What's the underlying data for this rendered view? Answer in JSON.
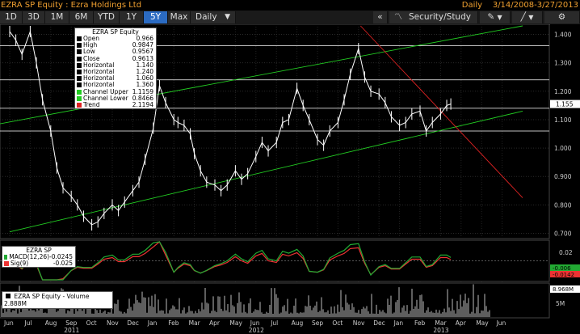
{
  "window": {
    "title": "EZRA SP Equity : Ezra Holdings Ltd",
    "period_label": "Daily",
    "date_range": "3/14/2008-3/27/2013"
  },
  "toolbar": {
    "buttons": [
      "1D",
      "3D",
      "1M",
      "6M",
      "YTD",
      "1Y",
      "5Y",
      "Max"
    ],
    "active": "5Y",
    "frequency": "Daily",
    "security_study": "Security/Study",
    "collapse_glyph": "«"
  },
  "colors": {
    "price": "#ffffff",
    "horizontal": "#ffffff",
    "channel": "#22cc22",
    "trend": "#dd2222",
    "macd": "#22aa33",
    "signal": "#ee3333",
    "accent": "#2b6bc2"
  },
  "legend_price": {
    "title": "EZRA SP Equity",
    "rows": [
      {
        "label": "Open",
        "value": "0.966",
        "swatch": "#000000"
      },
      {
        "label": "High",
        "value": "0.9847",
        "swatch": "#000000"
      },
      {
        "label": "Low",
        "value": "0.9567",
        "swatch": "#000000"
      },
      {
        "label": "Close",
        "value": "0.9613",
        "swatch": "#000000"
      },
      {
        "label": "Horizontal",
        "value": "1.140",
        "swatch": "#000000"
      },
      {
        "label": "Horizontal",
        "value": "1.240",
        "swatch": "#000000"
      },
      {
        "label": "Horizontal",
        "value": "1.060",
        "swatch": "#000000"
      },
      {
        "label": "Horizontal",
        "value": "1.360",
        "swatch": "#000000"
      },
      {
        "label": "Channel Upper",
        "value": "1.1159",
        "swatch": "#22cc22"
      },
      {
        "label": "Channel Lower",
        "value": "0.8466",
        "swatch": "#22cc22"
      },
      {
        "label": "Trend",
        "value": "2.1194",
        "swatch": "#dd2222"
      }
    ]
  },
  "legend_macd": {
    "title": "EZRA SP",
    "rows": [
      {
        "label": "MACD(12,26)",
        "value": "-0.0245",
        "swatch": "#22aa33"
      },
      {
        "label": "Sig(9)",
        "value": "-0.025",
        "swatch": "#ee3333"
      }
    ]
  },
  "legend_volume": {
    "label": "EZRA SP Equity - Volume",
    "value": "2.888M"
  },
  "chart_data": {
    "type": "line",
    "x_months": [
      "Jun",
      "Jul",
      "Aug",
      "Sep",
      "Oct",
      "Nov",
      "Dec",
      "Jan",
      "Feb",
      "Mar",
      "Apr",
      "May",
      "Jun",
      "Jul",
      "Aug",
      "Sep",
      "Oct",
      "Nov",
      "Dec",
      "Jan",
      "Feb",
      "Mar",
      "Apr",
      "May",
      "Jun"
    ],
    "x_years": [
      {
        "label": "2011",
        "month_index": 3
      },
      {
        "label": "2012",
        "month_index": 12
      },
      {
        "label": "2013",
        "month_index": 21
      }
    ],
    "price_axis": {
      "ticks": [
        "1.400",
        "1.300",
        "1.200",
        "1.100",
        "1.000",
        "0.900",
        "0.800",
        "0.700"
      ],
      "ylim": [
        0.69,
        1.43
      ],
      "last_price_label": "1.155"
    },
    "price_series": {
      "name": "EZRA SP Equity",
      "month_index": [
        0,
        0.3,
        0.6,
        1,
        1.3,
        1.6,
        2,
        2.3,
        2.6,
        3,
        3.3,
        3.6,
        4,
        4.3,
        4.6,
        5,
        5.3,
        5.6,
        6,
        6.3,
        6.6,
        7,
        7.3,
        7.6,
        8,
        8.2,
        8.5,
        8.8,
        9,
        9.3,
        9.6,
        10,
        10.3,
        10.6,
        11,
        11.3,
        11.6,
        12,
        12.3,
        12.6,
        13,
        13.3,
        13.6,
        14,
        14.3,
        14.6,
        15,
        15.3,
        15.6,
        16,
        16.3,
        16.6,
        17,
        17.3,
        17.6,
        18,
        18.3,
        18.6,
        19,
        19.3,
        19.6,
        20,
        20.3,
        20.6,
        21,
        21.3,
        21.5
      ],
      "values": [
        1.41,
        1.38,
        1.33,
        1.41,
        1.3,
        1.17,
        1.06,
        0.93,
        0.86,
        0.83,
        0.8,
        0.76,
        0.73,
        0.74,
        0.77,
        0.8,
        0.78,
        0.81,
        0.85,
        0.88,
        0.96,
        1.07,
        1.22,
        1.16,
        1.1,
        1.09,
        1.08,
        1.05,
        0.98,
        0.92,
        0.88,
        0.87,
        0.85,
        0.87,
        0.92,
        0.89,
        0.91,
        0.97,
        1.02,
        0.99,
        1.02,
        1.09,
        1.1,
        1.21,
        1.15,
        1.1,
        1.03,
        1.01,
        1.06,
        1.09,
        1.17,
        1.26,
        1.35,
        1.25,
        1.2,
        1.19,
        1.16,
        1.11,
        1.08,
        1.09,
        1.12,
        1.13,
        1.06,
        1.09,
        1.12,
        1.15,
        1.155
      ]
    },
    "horizontal_lines": [
      1.14,
      1.24,
      1.06,
      1.36
    ],
    "channel_upper": {
      "start": [
        -0.5,
        1.085
      ],
      "end": [
        25,
        1.43
      ]
    },
    "channel_lower": {
      "start": [
        0,
        0.705
      ],
      "end": [
        25,
        1.13
      ]
    },
    "trend": {
      "start": [
        17.1,
        1.43
      ],
      "end": [
        25,
        0.825
      ]
    },
    "macd_axis": {
      "ticks": [
        "0.02",
        "-0.02"
      ],
      "last_labels": [
        "-0.006",
        "-0.0142"
      ]
    },
    "volume_axis": {
      "ticks": [
        "8.968M",
        "5M"
      ]
    }
  }
}
